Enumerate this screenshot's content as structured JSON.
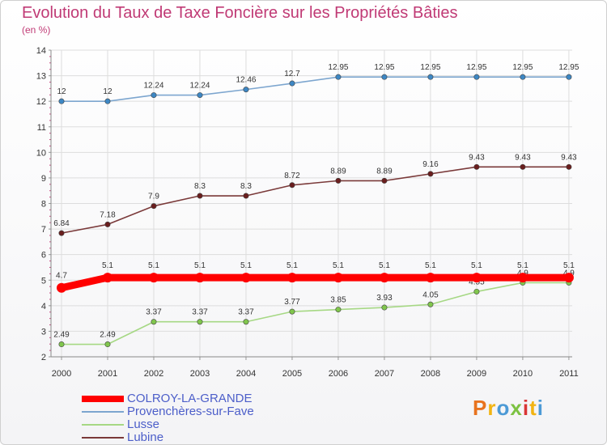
{
  "header": {
    "title": "Evolution du Taux de Taxe Foncière sur les Propriétés Bâties",
    "subtitle": "(en %)"
  },
  "logo": {
    "text": "Proxiti",
    "letter_colors": [
      "#e8731f",
      "#f2b413",
      "#4c9ad6",
      "#7cc242",
      "#d93535",
      "#f2b413",
      "#4c9ad6"
    ]
  },
  "chart_data": {
    "type": "line",
    "x": [
      "2000",
      "2001",
      "2002",
      "2003",
      "2004",
      "2005",
      "2006",
      "2007",
      "2008",
      "2009",
      "2010",
      "2011"
    ],
    "ylim": [
      2,
      14
    ],
    "yticks": [
      2,
      3,
      4,
      5,
      6,
      7,
      8,
      9,
      10,
      11,
      12,
      13,
      14
    ],
    "grid": true,
    "legend_position": "bottom-left",
    "series": [
      {
        "name": "COLROY-LA-GRANDE",
        "color": "#ff0000",
        "emphasis": true,
        "values": [
          4.7,
          5.1,
          5.1,
          5.1,
          5.1,
          5.1,
          5.1,
          5.1,
          5.1,
          5.1,
          5.1,
          5.1
        ],
        "labels": [
          "4.7",
          "5.1",
          "5.1",
          "5.1",
          "5.1",
          "5.1",
          "5.1",
          "5.1",
          "5.1",
          "5.1",
          "5.1",
          "5.1"
        ]
      },
      {
        "name": "Provenchères-sur-Fave",
        "color": "#7da6cf",
        "marker_color": "#3d87c4",
        "values": [
          12,
          12,
          12.24,
          12.24,
          12.46,
          12.7,
          12.95,
          12.95,
          12.95,
          12.95,
          12.95,
          12.95
        ],
        "labels": [
          "12",
          "12",
          "12.24",
          "12.24",
          "12.46",
          "12.7",
          "12.95",
          "12.95",
          "12.95",
          "12.95",
          "12.95",
          "12.95"
        ]
      },
      {
        "name": "Lusse",
        "color": "#a6d884",
        "marker_color": "#80c64c",
        "values": [
          2.49,
          2.49,
          3.37,
          3.37,
          3.37,
          3.77,
          3.85,
          3.93,
          4.05,
          4.55,
          4.9,
          4.9
        ],
        "labels": [
          "2.49",
          "2.49",
          "3.37",
          "3.37",
          "3.37",
          "3.77",
          "3.85",
          "3.93",
          "4.05",
          "4.55",
          "4.9",
          "4.9"
        ]
      },
      {
        "name": "Lubine",
        "color": "#7a3939",
        "marker_color": "#6a1e1e",
        "values": [
          6.84,
          7.18,
          7.9,
          8.3,
          8.3,
          8.72,
          8.89,
          8.89,
          9.16,
          9.43,
          9.43,
          9.43
        ],
        "labels": [
          "6.84",
          "7.18",
          "7.9",
          "8.3",
          "8.3",
          "8.72",
          "8.89",
          "8.89",
          "9.16",
          "9.43",
          "9.43",
          "9.43"
        ]
      }
    ]
  }
}
